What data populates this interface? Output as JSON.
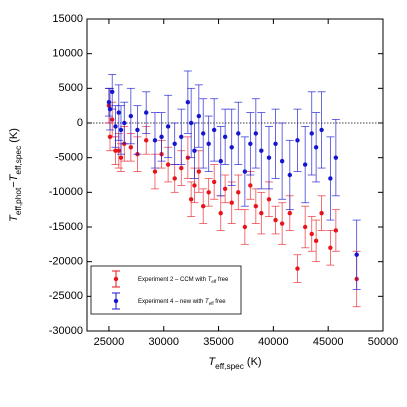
{
  "chart_data": {
    "type": "scatter",
    "x_label": [
      {
        "text": "T",
        "style": "italic"
      },
      {
        "text": "eff,spec",
        "style": "sub"
      },
      {
        "text": " (K)",
        "style": "normal"
      }
    ],
    "y_label": [
      {
        "text": "T",
        "style": "italic"
      },
      {
        "text": "eff,phot",
        "style": "sub"
      },
      {
        "text": "−",
        "style": "normal"
      },
      {
        "text": "T",
        "style": "italic"
      },
      {
        "text": "eff,spec",
        "style": "sub"
      },
      {
        "text": " (K)",
        "style": "normal"
      }
    ],
    "xlim": [
      23000,
      50000
    ],
    "xticks": [
      25000,
      30000,
      35000,
      40000,
      45000,
      50000
    ],
    "ylim": [
      -30000,
      15000
    ],
    "yticks": [
      -30000,
      -25000,
      -20000,
      -15000,
      -10000,
      -5000,
      0,
      5000,
      10000,
      15000
    ],
    "reference_line": 0,
    "legend": "lower left",
    "x": [
      25000,
      25100,
      25300,
      25600,
      25900,
      26100,
      26400,
      27000,
      27600,
      28400,
      29200,
      29800,
      30400,
      31000,
      31600,
      32200,
      32500,
      32800,
      33200,
      33600,
      34100,
      34600,
      35200,
      35600,
      36200,
      36800,
      37400,
      37900,
      38400,
      38900,
      39600,
      40200,
      40800,
      41500,
      42200,
      42900,
      43500,
      43900,
      44400,
      45200,
      45700,
      47600
    ],
    "series": [
      {
        "name": [
          {
            "text": "Experiment 2 – CCM  with ",
            "style": "normal"
          },
          {
            "text": "T",
            "style": "italic"
          },
          {
            "text": "eff",
            "style": "sub"
          },
          {
            "text": " free",
            "style": "normal"
          }
        ],
        "color": "#e8141c",
        "values": [
          2500,
          -2000,
          500,
          -4000,
          -4000,
          -5000,
          -3000,
          -3500,
          -4500,
          -2500,
          -7000,
          -4500,
          -6000,
          -8000,
          -6500,
          -5000,
          -11000,
          -9000,
          -7000,
          -12000,
          -10000,
          -8500,
          -13000,
          -9500,
          -11500,
          -10000,
          -15000,
          -9000,
          -12000,
          -13000,
          -11000,
          -14000,
          -14500,
          -13000,
          -21000,
          -15000,
          -16000,
          -17000,
          -13000,
          -18000,
          -15500,
          -22500
        ],
        "errors": [
          2500,
          2000,
          2500,
          2000,
          2500,
          2000,
          2500,
          2000,
          2500,
          2000,
          2500,
          2000,
          2500,
          2000,
          2500,
          3000,
          2500,
          2500,
          3000,
          2500,
          2000,
          2500,
          2500,
          2000,
          3000,
          2500,
          2500,
          2000,
          2500,
          3000,
          2500,
          2000,
          3000,
          2500,
          2000,
          3000,
          2500,
          3000,
          2500,
          2500,
          3000,
          4000
        ]
      },
      {
        "name": [
          {
            "text": "Experiment 4 – new  with ",
            "style": "normal"
          },
          {
            "text": "T",
            "style": "italic"
          },
          {
            "text": "eff",
            "style": "sub"
          },
          {
            "text": " free",
            "style": "normal"
          }
        ],
        "color": "#1515d0",
        "values": [
          3000,
          2000,
          4500,
          -500,
          1500,
          -1000,
          0,
          1000,
          -1000,
          1500,
          -2500,
          -2000,
          -500,
          -3000,
          -2000,
          3000,
          0,
          -4000,
          1000,
          -1500,
          -3000,
          -1000,
          -5500,
          -2000,
          -3500,
          -1500,
          -7000,
          -3000,
          -1500,
          -4000,
          -5000,
          -3000,
          -5500,
          -7500,
          -2500,
          -6000,
          -1500,
          -3500,
          -1000,
          -8000,
          -5000,
          -19000
        ],
        "errors": [
          2000,
          3000,
          2500,
          3000,
          4000,
          3500,
          3000,
          4000,
          3500,
          3000,
          4000,
          3500,
          4500,
          3000,
          4000,
          4500,
          5000,
          4000,
          4500,
          5000,
          4000,
          4500,
          5000,
          4000,
          5500,
          4500,
          5000,
          4500,
          5000,
          5500,
          4500,
          5000,
          5500,
          5000,
          4500,
          5500,
          6000,
          5000,
          5500,
          6000,
          5500,
          5000
        ]
      }
    ]
  }
}
